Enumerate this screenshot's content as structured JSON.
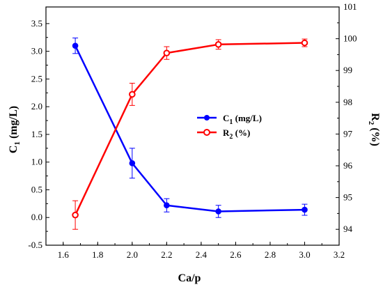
{
  "chart_data": {
    "type": "line",
    "x": [
      1.67,
      2.0,
      2.2,
      2.5,
      3.0
    ],
    "xlabel": "Ca/p",
    "xlim": [
      1.5,
      3.2
    ],
    "xticks": [
      "1.6",
      "1.8",
      "2.0",
      "2.2",
      "2.4",
      "2.6",
      "2.8",
      "3.0",
      "3.2"
    ],
    "ylabel_left": {
      "main": "C",
      "sub": "1",
      "tail": " (mg/L)"
    },
    "ylim_left": [
      -0.5,
      3.8
    ],
    "yticks_left": [
      "-0.5",
      "0.0",
      "0.5",
      "1.0",
      "1.5",
      "2.0",
      "2.5",
      "3.0",
      "3.5"
    ],
    "ylabel_right": {
      "main": "R",
      "sub": "2",
      "tail": " (%)"
    },
    "ylim_right": [
      93.5,
      101
    ],
    "yticks_right": [
      "94",
      "95",
      "96",
      "97",
      "98",
      "99",
      "100",
      "101"
    ],
    "legend_position": "center-right",
    "series": [
      {
        "axis": "left",
        "color": "#0000ff",
        "label": {
          "main": "C",
          "sub": "1",
          "tail": " (mg/L)"
        },
        "values": [
          3.1,
          0.98,
          0.22,
          0.11,
          0.14
        ],
        "errors": [
          0.14,
          0.27,
          0.12,
          0.11,
          0.1
        ]
      },
      {
        "axis": "right",
        "color": "#ff0000",
        "label": {
          "main": "R",
          "sub": "2",
          "tail": " (%)"
        },
        "values": [
          94.45,
          98.25,
          99.55,
          99.82,
          99.87
        ],
        "errors": [
          0.45,
          0.35,
          0.2,
          0.15,
          0.12
        ]
      }
    ]
  }
}
